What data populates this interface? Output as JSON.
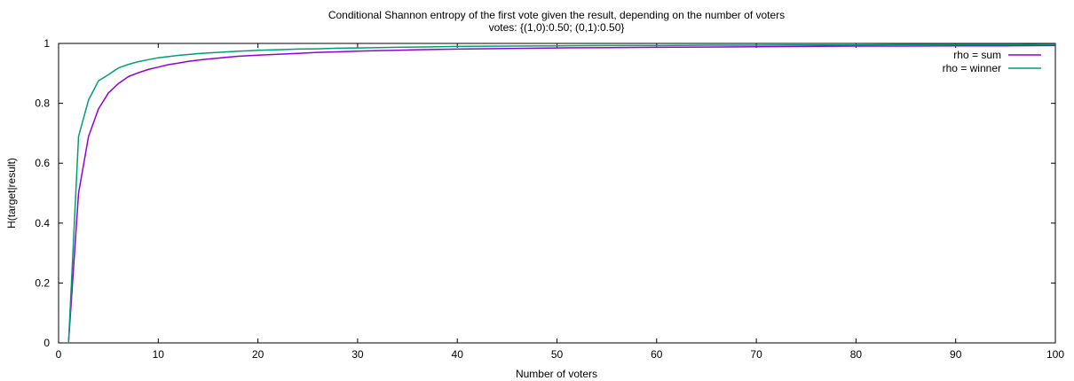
{
  "chart_data": {
    "type": "line",
    "title": "Conditional Shannon entropy of the first vote given the result, depending on the number of voters",
    "subtitle": "votes: {(1,0):0.50; (0,1):0.50}",
    "xlabel": "Number of voters",
    "ylabel": "H(target|result)",
    "xlim": [
      0,
      100
    ],
    "ylim": [
      0,
      1
    ],
    "xticks": [
      0,
      10,
      20,
      30,
      40,
      50,
      60,
      70,
      80,
      90,
      100
    ],
    "yticks": [
      0,
      0.2,
      0.4,
      0.6,
      0.8,
      1
    ],
    "ytick_labels": [
      "0",
      "0.2",
      "0.4",
      "0.6",
      "0.8",
      "1"
    ],
    "grid": false,
    "legend": "top-right",
    "series": [
      {
        "name": "rho = sum",
        "color": "#9400d3",
        "x": [
          1,
          2,
          3,
          4,
          5,
          6,
          7,
          8,
          9,
          10,
          11,
          12,
          13,
          14,
          15,
          16,
          17,
          18,
          19,
          20,
          22,
          24,
          26,
          28,
          30,
          32,
          34,
          36,
          38,
          40,
          45,
          50,
          55,
          60,
          65,
          70,
          75,
          80,
          85,
          90,
          95,
          100
        ],
        "y": [
          0,
          0.5,
          0.689,
          0.781,
          0.835,
          0.866,
          0.889,
          0.902,
          0.913,
          0.921,
          0.929,
          0.934,
          0.94,
          0.944,
          0.948,
          0.951,
          0.954,
          0.957,
          0.959,
          0.961,
          0.964,
          0.967,
          0.97,
          0.972,
          0.974,
          0.976,
          0.977,
          0.979,
          0.98,
          0.981,
          0.983,
          0.985,
          0.986,
          0.987,
          0.988,
          0.989,
          0.99,
          0.991,
          0.991,
          0.992,
          0.992,
          0.993
        ]
      },
      {
        "name": "rho = winner",
        "color": "#009e73",
        "x": [
          1,
          2,
          3,
          4,
          5,
          6,
          7,
          8,
          9,
          10,
          11,
          12,
          13,
          14,
          15,
          16,
          17,
          18,
          19,
          20,
          22,
          24,
          26,
          28,
          30,
          32,
          34,
          36,
          38,
          40,
          45,
          50,
          55,
          60,
          65,
          70,
          75,
          80,
          85,
          90,
          95,
          100
        ],
        "y": [
          0,
          0.689,
          0.811,
          0.875,
          0.896,
          0.918,
          0.93,
          0.939,
          0.946,
          0.952,
          0.956,
          0.96,
          0.963,
          0.966,
          0.968,
          0.97,
          0.972,
          0.974,
          0.975,
          0.977,
          0.979,
          0.981,
          0.982,
          0.984,
          0.985,
          0.986,
          0.987,
          0.988,
          0.989,
          0.99,
          0.991,
          0.992,
          0.993,
          0.993,
          0.994,
          0.994,
          0.995,
          0.995,
          0.996,
          0.996,
          0.996,
          0.997
        ]
      }
    ]
  }
}
